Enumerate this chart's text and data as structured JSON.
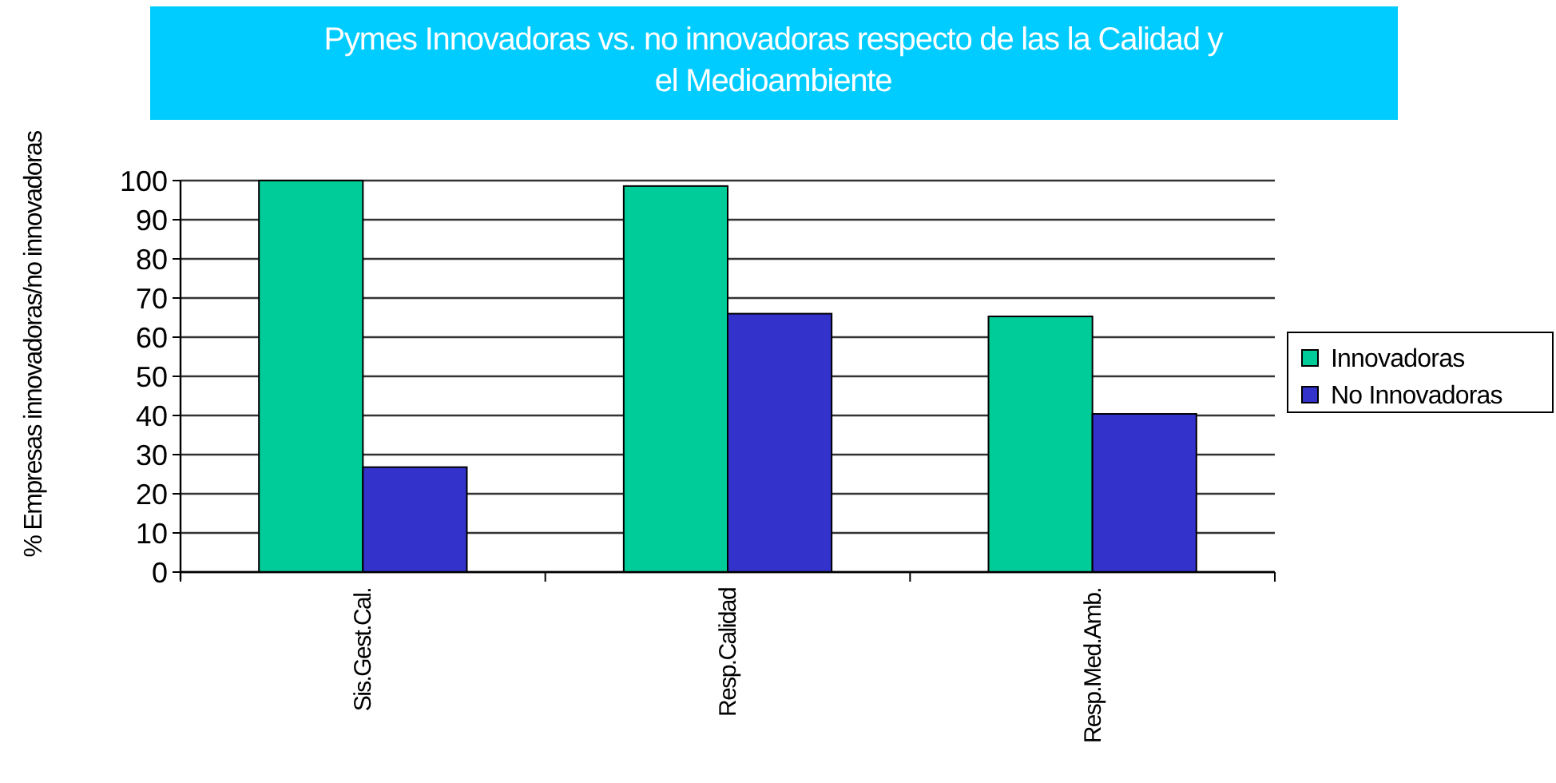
{
  "chart_data": {
    "type": "bar",
    "title": "Pymes Innovadoras vs. no innovadoras respecto de las la Calidad y el Medioambiente",
    "ylabel": "% Empresas innovadoras/no innovadoras",
    "categories": [
      "Sis.Gest.Cal.",
      "Resp.Calidad",
      "Resp.Med.Amb."
    ],
    "series": [
      {
        "name": "Innovadoras",
        "color": "#00cc99",
        "values": [
          100,
          98.6,
          65.3
        ]
      },
      {
        "name": "No Innovadoras",
        "color": "#3333cc",
        "values": [
          26.8,
          66,
          40.4
        ]
      }
    ],
    "ylim": [
      0,
      100
    ],
    "yticks": [
      0,
      10,
      20,
      30,
      40,
      50,
      60,
      70,
      80,
      90,
      100
    ],
    "grid": "y",
    "legend": "right"
  }
}
